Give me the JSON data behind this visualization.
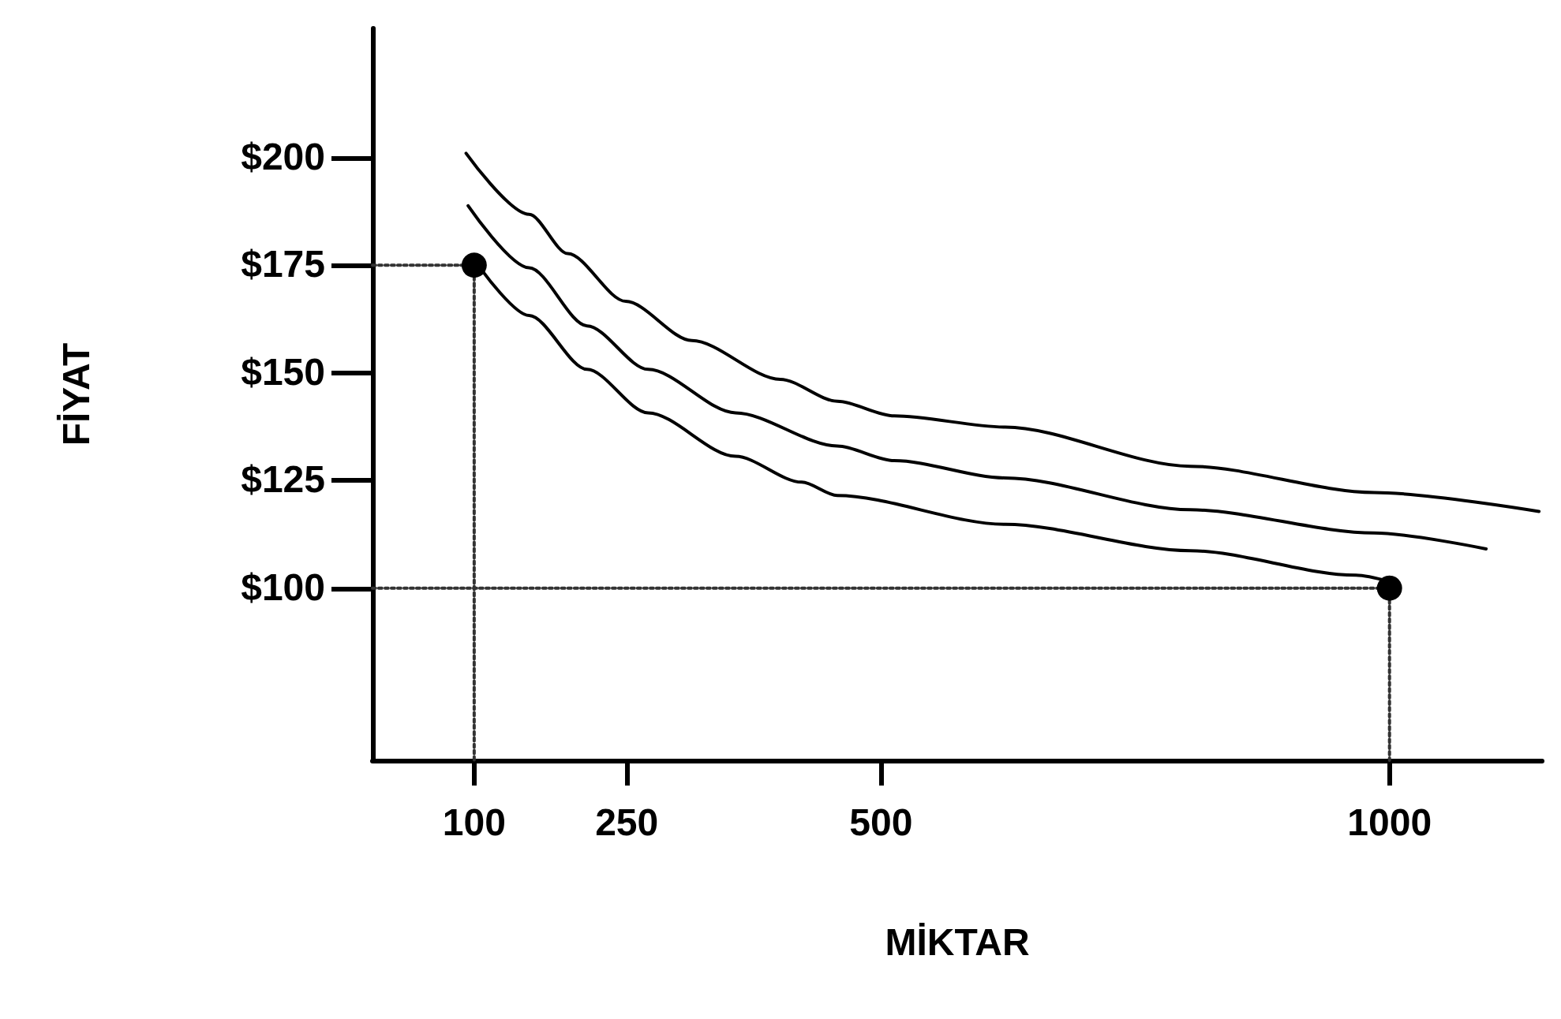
{
  "chart_data": {
    "type": "line",
    "xlabel": "MİKTAR",
    "ylabel": "FİYAT",
    "xlim": [
      0,
      1150
    ],
    "ylim": [
      60,
      230
    ],
    "xticks": [
      100,
      250,
      500,
      1000
    ],
    "yticks": [
      {
        "value": 100,
        "label": "$100"
      },
      {
        "value": 125,
        "label": "$125"
      },
      {
        "value": 150,
        "label": "$150"
      },
      {
        "value": 175,
        "label": "$175"
      },
      {
        "value": 200,
        "label": "$200"
      }
    ],
    "grid": false,
    "marker": "none",
    "line_style": "solid",
    "series": [
      {
        "color": "#000000",
        "x": [
          92,
          154,
          192,
          249,
          314,
          401,
          457,
          513,
          622,
          804,
          985,
          1147
        ],
        "values": [
          201.0,
          186.8,
          177.7,
          166.6,
          157.5,
          148.5,
          143.4,
          140.0,
          137.4,
          128.3,
          122.2,
          117.8
        ]
      },
      {
        "color": "#000000",
        "x": [
          94,
          154,
          211,
          271,
          357,
          457,
          513,
          622,
          804,
          985,
          1095
        ],
        "values": [
          188.8,
          174.4,
          160.9,
          150.8,
          140.7,
          133.0,
          129.6,
          125.6,
          118.2,
          112.8,
          109.1
        ]
      },
      {
        "color": "#000000",
        "x": [
          108,
          154,
          211,
          271,
          357,
          422,
          457,
          622,
          804,
          967,
          1000
        ],
        "values": [
          173.7,
          163.3,
          150.8,
          140.7,
          130.6,
          124.6,
          121.5,
          114.8,
          108.7,
          103.0,
          101.5
        ]
      },
      {
        "color": "#333333",
        "line_style": "dotted",
        "x": [
          0,
          100,
          100
        ],
        "values": [
          175,
          175,
          60
        ]
      },
      {
        "color": "#333333",
        "line_style": "dotted",
        "x": [
          0,
          1000,
          1000
        ],
        "values": [
          100,
          100,
          60
        ]
      },
      {
        "type": "scatter",
        "marker": "circle",
        "color": "#000000",
        "x": [
          100,
          1000
        ],
        "values": [
          175,
          100
        ]
      }
    ]
  }
}
